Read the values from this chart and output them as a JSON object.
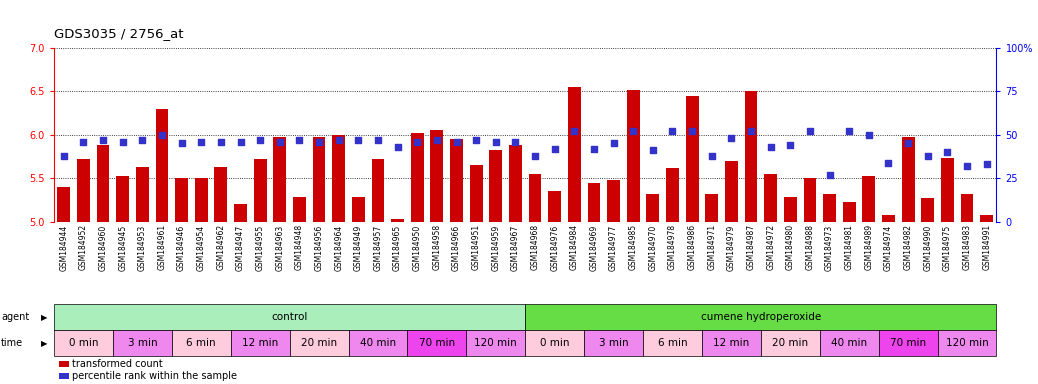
{
  "title": "GDS3035 / 2756_at",
  "samples": [
    "GSM184944",
    "GSM184952",
    "GSM184960",
    "GSM184945",
    "GSM184953",
    "GSM184961",
    "GSM184946",
    "GSM184954",
    "GSM184962",
    "GSM184947",
    "GSM184955",
    "GSM184963",
    "GSM184948",
    "GSM184956",
    "GSM184964",
    "GSM184949",
    "GSM184957",
    "GSM184965",
    "GSM184950",
    "GSM184958",
    "GSM184966",
    "GSM184951",
    "GSM184959",
    "GSM184967",
    "GSM184968",
    "GSM184976",
    "GSM184984",
    "GSM184969",
    "GSM184977",
    "GSM184985",
    "GSM184970",
    "GSM184978",
    "GSM184986",
    "GSM184971",
    "GSM184979",
    "GSM184987",
    "GSM184972",
    "GSM184980",
    "GSM184988",
    "GSM184973",
    "GSM184981",
    "GSM184989",
    "GSM184974",
    "GSM184982",
    "GSM184990",
    "GSM184975",
    "GSM184983",
    "GSM184991"
  ],
  "bar_values": [
    5.4,
    5.72,
    5.88,
    5.52,
    5.63,
    6.3,
    5.5,
    5.5,
    5.63,
    5.2,
    5.72,
    5.97,
    5.28,
    5.97,
    6.0,
    5.28,
    5.72,
    5.03,
    6.02,
    6.05,
    5.95,
    5.65,
    5.82,
    5.88,
    5.55,
    5.35,
    6.55,
    5.45,
    5.48,
    6.52,
    5.32,
    5.62,
    6.45,
    5.32,
    5.7,
    6.5,
    5.55,
    5.28,
    5.5,
    5.32,
    5.22,
    5.52,
    5.08,
    5.97,
    5.27,
    5.73,
    5.32,
    5.08
  ],
  "dot_values": [
    38,
    46,
    47,
    46,
    47,
    50,
    45,
    46,
    46,
    46,
    47,
    46,
    47,
    46,
    47,
    47,
    47,
    43,
    46,
    47,
    46,
    47,
    46,
    46,
    38,
    42,
    52,
    42,
    45,
    52,
    41,
    52,
    52,
    38,
    48,
    52,
    43,
    44,
    52,
    27,
    52,
    50,
    34,
    45,
    38,
    40,
    32,
    33
  ],
  "ylim_left": [
    5.0,
    7.0
  ],
  "ylim_right": [
    0,
    100
  ],
  "yticks_left": [
    5.0,
    5.5,
    6.0,
    6.5,
    7.0
  ],
  "yticks_right": [
    0,
    25,
    50,
    75,
    100
  ],
  "ytick_labels_right": [
    "0",
    "25",
    "50",
    "75",
    "100%"
  ],
  "bar_color": "#CC0000",
  "dot_color": "#3333CC",
  "agent_groups": [
    {
      "label": "control",
      "start": 0,
      "end": 24,
      "color": "#AAEEBB"
    },
    {
      "label": "cumene hydroperoxide",
      "start": 24,
      "end": 48,
      "color": "#66DD44"
    }
  ],
  "time_groups_control": [
    {
      "label": "0 min",
      "start": 0,
      "end": 3,
      "color": "#FFCCDD"
    },
    {
      "label": "3 min",
      "start": 3,
      "end": 6,
      "color": "#EE88EE"
    },
    {
      "label": "6 min",
      "start": 6,
      "end": 9,
      "color": "#FFCCDD"
    },
    {
      "label": "12 min",
      "start": 9,
      "end": 12,
      "color": "#EE88EE"
    },
    {
      "label": "20 min",
      "start": 12,
      "end": 15,
      "color": "#FFCCDD"
    },
    {
      "label": "40 min",
      "start": 15,
      "end": 18,
      "color": "#EE88EE"
    },
    {
      "label": "70 min",
      "start": 18,
      "end": 21,
      "color": "#EE44EE"
    },
    {
      "label": "120 min",
      "start": 21,
      "end": 24,
      "color": "#EE88EE"
    }
  ],
  "time_groups_cumene": [
    {
      "label": "0 min",
      "start": 24,
      "end": 27,
      "color": "#FFCCDD"
    },
    {
      "label": "3 min",
      "start": 27,
      "end": 30,
      "color": "#EE88EE"
    },
    {
      "label": "6 min",
      "start": 30,
      "end": 33,
      "color": "#FFCCDD"
    },
    {
      "label": "12 min",
      "start": 33,
      "end": 36,
      "color": "#EE88EE"
    },
    {
      "label": "20 min",
      "start": 36,
      "end": 39,
      "color": "#FFCCDD"
    },
    {
      "label": "40 min",
      "start": 39,
      "end": 42,
      "color": "#EE88EE"
    },
    {
      "label": "70 min",
      "start": 42,
      "end": 45,
      "color": "#EE44EE"
    },
    {
      "label": "120 min",
      "start": 45,
      "end": 48,
      "color": "#EE88EE"
    }
  ],
  "legend_items": [
    {
      "label": "transformed count",
      "color": "#CC0000"
    },
    {
      "label": "percentile rank within the sample",
      "color": "#3333CC"
    }
  ]
}
